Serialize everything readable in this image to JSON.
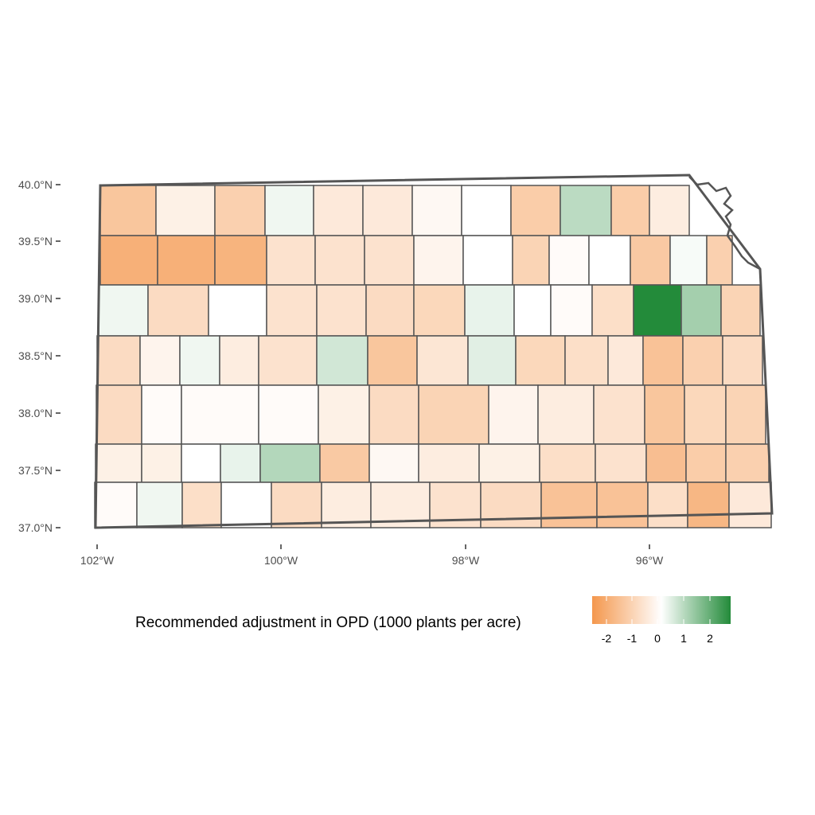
{
  "map": {
    "y_axis": {
      "tick_labels": [
        "37.0°N",
        "37.5°N",
        "38.0°N",
        "38.5°N",
        "39.0°N",
        "39.5°N",
        "40.0°N"
      ],
      "tick_values": [
        37.0,
        37.5,
        38.0,
        38.5,
        39.0,
        39.5,
        40.0
      ]
    },
    "x_axis": {
      "tick_labels": [
        "102°W",
        "100°W",
        "98°W",
        "96°W"
      ],
      "tick_values": [
        -102,
        -100,
        -98,
        -96
      ]
    },
    "fill_scale": {
      "low_color": "#f4974d",
      "mid_color": "#ffffff",
      "high_color": "#238b3a",
      "limits": [
        -2.9,
        2.9
      ]
    },
    "border_color": "#555555",
    "counties": [
      {
        "row": 1,
        "value": -1.6
      },
      {
        "row": 1,
        "value": -0.4
      },
      {
        "row": 1,
        "value": -1.3
      },
      {
        "row": 1,
        "value": 0.2
      },
      {
        "row": 1,
        "value": -0.6
      },
      {
        "row": 1,
        "value": -0.6
      },
      {
        "row": 1,
        "value": -0.2
      },
      {
        "row": 1,
        "value": 0.0
      },
      {
        "row": 1,
        "value": -1.4
      },
      {
        "row": 1,
        "value": 0.9
      },
      {
        "row": 1,
        "value": -1.4
      },
      {
        "row": 1,
        "value": -0.5
      },
      {
        "row": 2,
        "value": -2.2
      },
      {
        "row": 2,
        "value": -2.2
      },
      {
        "row": 2,
        "value": -2.1
      },
      {
        "row": 2,
        "value": -0.8
      },
      {
        "row": 2,
        "value": -0.8
      },
      {
        "row": 2,
        "value": -0.8
      },
      {
        "row": 2,
        "value": -0.3
      },
      {
        "row": 2,
        "value": 0.0
      },
      {
        "row": 2,
        "value": -1.2
      },
      {
        "row": 2,
        "value": -0.1
      },
      {
        "row": 2,
        "value": 0.0
      },
      {
        "row": 2,
        "value": -1.5
      },
      {
        "row": 2,
        "value": 0.1
      },
      {
        "row": 2,
        "value": -1.3
      },
      {
        "row": 2,
        "value": 0.1
      },
      {
        "row": 3,
        "value": 0.2
      },
      {
        "row": 3,
        "value": -1.0
      },
      {
        "row": 3,
        "value": 0.0
      },
      {
        "row": 3,
        "value": -0.8
      },
      {
        "row": 3,
        "value": -0.8
      },
      {
        "row": 3,
        "value": -1.0
      },
      {
        "row": 3,
        "value": -1.1
      },
      {
        "row": 3,
        "value": 0.3
      },
      {
        "row": 3,
        "value": 0.0
      },
      {
        "row": 3,
        "value": -0.1
      },
      {
        "row": 3,
        "value": -0.9
      },
      {
        "row": 3,
        "value": 2.9
      },
      {
        "row": 3,
        "value": 1.2
      },
      {
        "row": 3,
        "value": -1.2
      },
      {
        "row": 4,
        "value": -1.0
      },
      {
        "row": 4,
        "value": -0.3
      },
      {
        "row": 4,
        "value": 0.2
      },
      {
        "row": 4,
        "value": -0.5
      },
      {
        "row": 4,
        "value": -0.8
      },
      {
        "row": 4,
        "value": 0.6
      },
      {
        "row": 4,
        "value": -1.6
      },
      {
        "row": 4,
        "value": -0.7
      },
      {
        "row": 4,
        "value": 0.4
      },
      {
        "row": 4,
        "value": -1.1
      },
      {
        "row": 4,
        "value": -0.9
      },
      {
        "row": 4,
        "value": -0.6
      },
      {
        "row": 4,
        "value": -1.7
      },
      {
        "row": 4,
        "value": -1.3
      },
      {
        "row": 4,
        "value": -1.0
      },
      {
        "row": 5,
        "value": -1.0
      },
      {
        "row": 5,
        "value": -0.1
      },
      {
        "row": 5,
        "value": -0.1
      },
      {
        "row": 5,
        "value": -0.1
      },
      {
        "row": 5,
        "value": -0.4
      },
      {
        "row": 5,
        "value": -1.0
      },
      {
        "row": 5,
        "value": -1.2
      },
      {
        "row": 5,
        "value": -0.3
      },
      {
        "row": 5,
        "value": -0.5
      },
      {
        "row": 5,
        "value": -0.8
      },
      {
        "row": 5,
        "value": -1.6
      },
      {
        "row": 5,
        "value": -1.1
      },
      {
        "row": 5,
        "value": -1.2
      },
      {
        "row": 5,
        "value": -1.7
      },
      {
        "row": 6,
        "value": -0.4
      },
      {
        "row": 6,
        "value": -0.4
      },
      {
        "row": 6,
        "value": 0.0
      },
      {
        "row": 6,
        "value": 0.3
      },
      {
        "row": 6,
        "value": 1.0
      },
      {
        "row": 6,
        "value": -1.5
      },
      {
        "row": 6,
        "value": -0.2
      },
      {
        "row": 6,
        "value": -0.5
      },
      {
        "row": 6,
        "value": -0.4
      },
      {
        "row": 6,
        "value": -0.9
      },
      {
        "row": 6,
        "value": -0.8
      },
      {
        "row": 6,
        "value": -1.8
      },
      {
        "row": 6,
        "value": -1.4
      },
      {
        "row": 6,
        "value": -1.3
      },
      {
        "row": 6,
        "value": -1.2
      },
      {
        "row": 7,
        "value": -0.1
      },
      {
        "row": 7,
        "value": 0.2
      },
      {
        "row": 7,
        "value": -0.9
      },
      {
        "row": 7,
        "value": 0.0
      },
      {
        "row": 7,
        "value": -1.0
      },
      {
        "row": 7,
        "value": -0.5
      },
      {
        "row": 7,
        "value": -0.5
      },
      {
        "row": 7,
        "value": -0.8
      },
      {
        "row": 7,
        "value": -1.0
      },
      {
        "row": 7,
        "value": -1.7
      },
      {
        "row": 7,
        "value": -1.7
      },
      {
        "row": 7,
        "value": -0.9
      },
      {
        "row": 7,
        "value": -2.0
      },
      {
        "row": 7,
        "value": -0.6
      }
    ]
  },
  "legend": {
    "title": "Recommended adjustment in OPD (1000 plants per acre)",
    "tick_labels": [
      "-2",
      "-1",
      "0",
      "1",
      "2"
    ],
    "tick_values": [
      -2,
      -1,
      0,
      1,
      2
    ]
  }
}
